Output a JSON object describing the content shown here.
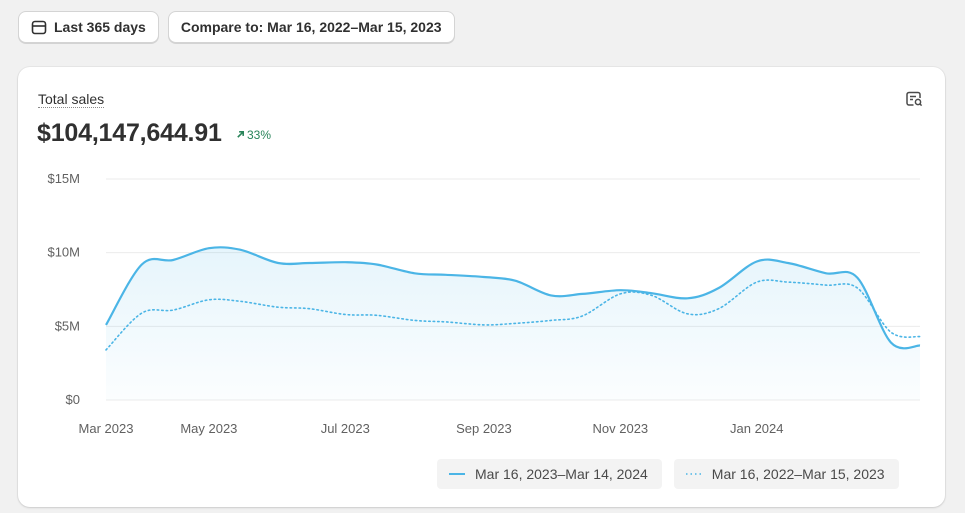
{
  "toolbar": {
    "date_range_label": "Last 365 days",
    "compare_label": "Compare to: Mar 16, 2022–Mar 15, 2023"
  },
  "card": {
    "title": "Total sales",
    "total_value": "$104,147,644.91",
    "change": "33%",
    "change_direction": "up",
    "change_color": "#29845a"
  },
  "icons": {
    "calendar": "calendar-icon",
    "insights": "chart-insights-icon",
    "trend": "arrow-up-right-icon"
  },
  "chart_data": {
    "type": "line",
    "title": "Total sales",
    "xlabel": "",
    "ylabel": "",
    "ylim": [
      0,
      15
    ],
    "y_unit": "$M",
    "y_ticks": [
      0,
      5,
      10,
      15
    ],
    "y_tick_labels": [
      "$0",
      "$5M",
      "$10M",
      "$15M"
    ],
    "x_tick_labels": [
      "Mar 2023",
      "May 2023",
      "Jul 2023",
      "Sep 2023",
      "Nov 2023",
      "Jan 2024"
    ],
    "x": [
      "2023-03-16",
      "2023-04-01",
      "2023-04-15",
      "2023-05-01",
      "2023-05-15",
      "2023-06-01",
      "2023-06-15",
      "2023-07-01",
      "2023-07-15",
      "2023-08-01",
      "2023-08-15",
      "2023-09-01",
      "2023-09-15",
      "2023-10-01",
      "2023-10-15",
      "2023-11-01",
      "2023-11-15",
      "2023-12-01",
      "2023-12-15",
      "2024-01-01",
      "2024-01-15",
      "2024-02-01",
      "2024-02-15",
      "2024-03-01",
      "2024-03-14"
    ],
    "grid": true,
    "legend_position": "bottom-right",
    "series": [
      {
        "name": "Mar 16, 2023–Mar 14, 2024",
        "style": "solid",
        "color": "#4bb5e6",
        "values": [
          5.1,
          9.2,
          9.5,
          10.3,
          10.2,
          9.3,
          9.3,
          9.35,
          9.2,
          8.6,
          8.5,
          8.35,
          8.1,
          7.1,
          7.2,
          7.45,
          7.25,
          6.9,
          7.6,
          9.4,
          9.3,
          8.6,
          8.3,
          3.9,
          3.7
        ]
      },
      {
        "name": "Mar 16, 2022–Mar 15, 2023",
        "style": "dotted",
        "color": "#4bb5e6",
        "values": [
          3.4,
          5.9,
          6.1,
          6.8,
          6.7,
          6.3,
          6.2,
          5.8,
          5.75,
          5.4,
          5.3,
          5.1,
          5.2,
          5.4,
          5.7,
          7.2,
          7.1,
          5.85,
          6.2,
          8.0,
          8.0,
          7.8,
          7.6,
          4.6,
          4.3
        ]
      }
    ]
  }
}
